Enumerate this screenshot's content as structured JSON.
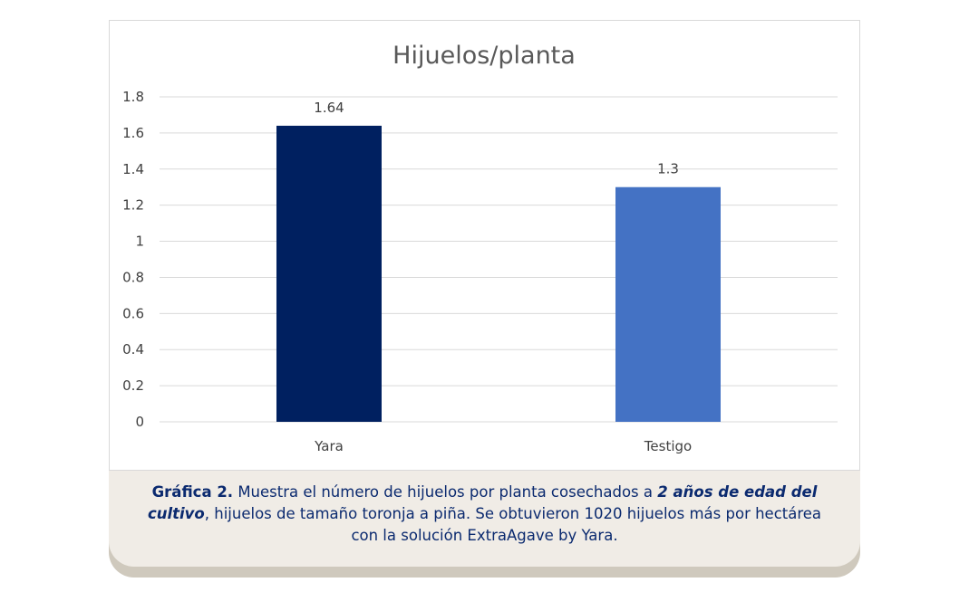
{
  "chart_data": {
    "type": "bar",
    "title": "Hijuelos/planta",
    "categories": [
      "Yara",
      "Testigo"
    ],
    "values": [
      1.64,
      1.3
    ],
    "data_labels": [
      "1.64",
      "1.3"
    ],
    "colors": [
      "#002060",
      "#4472c4"
    ],
    "yticks": [
      "0",
      "0.2",
      "0.4",
      "0.6",
      "0.8",
      "1",
      "1.2",
      "1.4",
      "1.6",
      "1.8"
    ],
    "ylim": [
      0,
      1.8
    ],
    "grid": true,
    "legend": "none"
  },
  "caption": {
    "lead": "Gráfica 2.",
    "text1": " Muestra el número de hijuelos por planta cosechados a ",
    "emph": "2 años de edad del cultivo",
    "text2": ", hijuelos de tamaño toronja a piña. Se obtuvieron 1020 hijuelos más por hectárea con la solución ExtraAgave by Yara."
  }
}
